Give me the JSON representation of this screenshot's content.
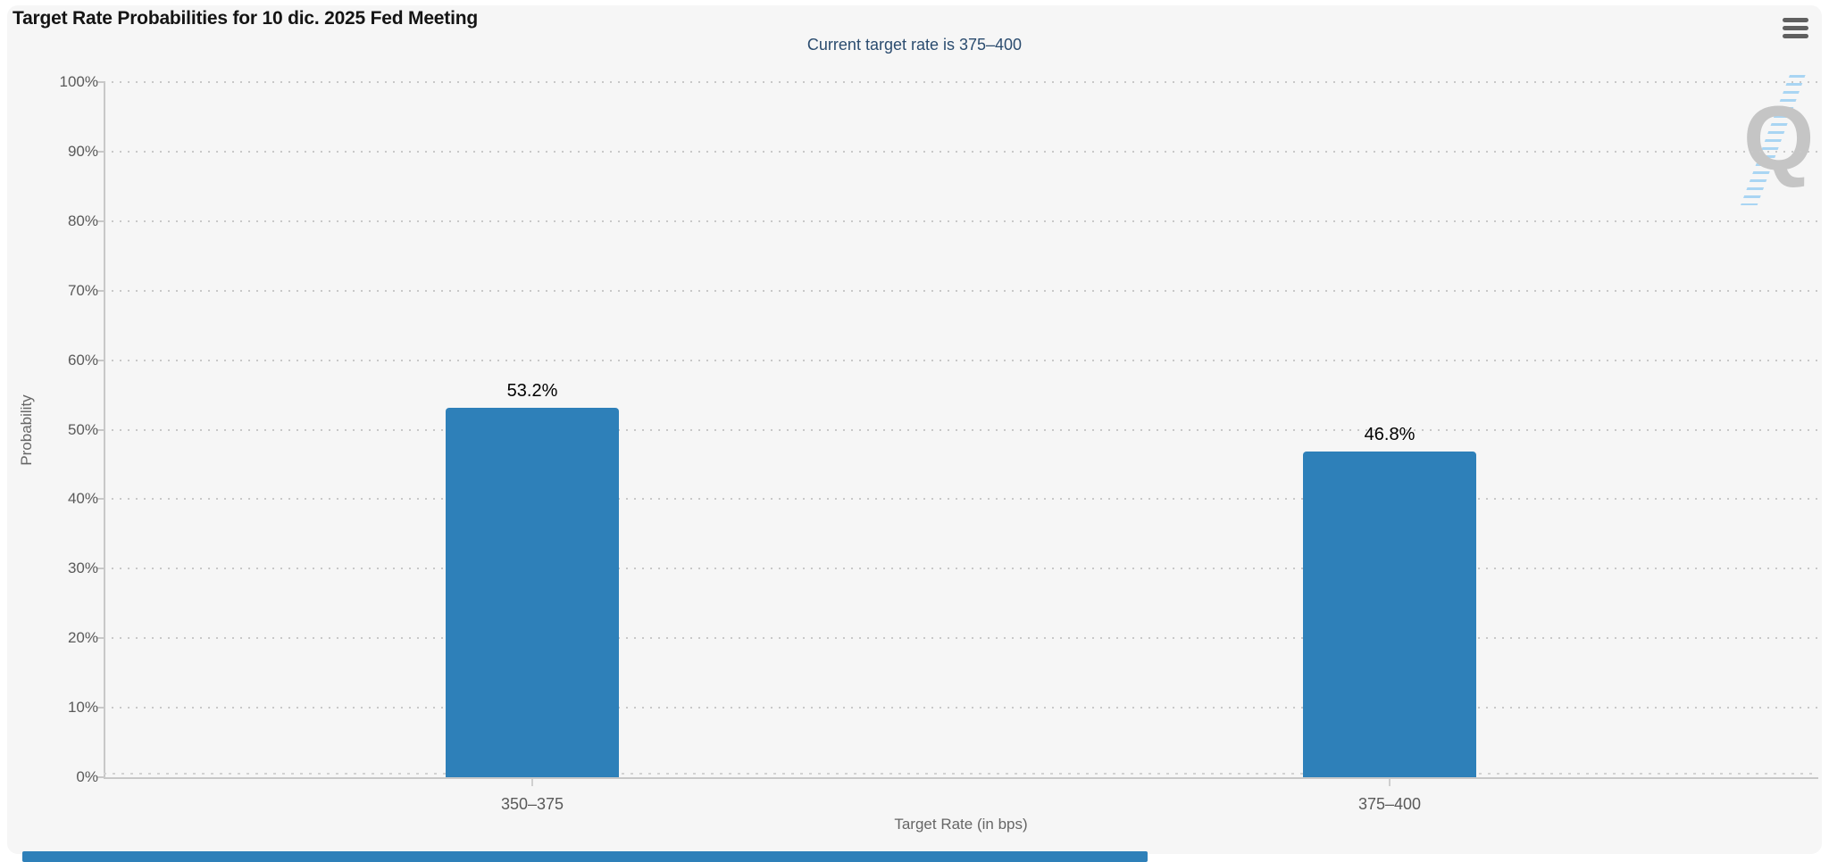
{
  "header": {
    "title": "Target Rate Probabilities for 10 dic. 2025 Fed Meeting",
    "subtitle": "Current target rate is 375–400",
    "menu_icon": "hamburger-menu"
  },
  "watermark": {
    "letter": "Q"
  },
  "colors": {
    "bar": "#2E80B9",
    "subtitle_text": "#2B4C6F",
    "panel_background": "#F6F6F6",
    "axis_text": "#5A5A5A",
    "gridline": "#C8C8C8"
  },
  "chart_data": {
    "type": "bar",
    "title": "Target Rate Probabilities for 10 dic. 2025 Fed Meeting",
    "subtitle": "Current target rate is 375–400",
    "categories": [
      "350–375",
      "375–400"
    ],
    "values": [
      53.2,
      46.8
    ],
    "value_labels": [
      "53.2%",
      "46.8%"
    ],
    "xlabel": "Target Rate (in bps)",
    "ylabel": "Probability",
    "ylim": [
      0,
      100
    ],
    "yticks": [
      0,
      10,
      20,
      30,
      40,
      50,
      60,
      70,
      80,
      90,
      100
    ],
    "ytick_labels": [
      "0%",
      "10%",
      "20%",
      "30%",
      "40%",
      "50%",
      "60%",
      "70%",
      "80%",
      "90%",
      "100%"
    ],
    "grid": "horizontal dotted",
    "legend": "none",
    "bar_color": "#2E80B9"
  }
}
